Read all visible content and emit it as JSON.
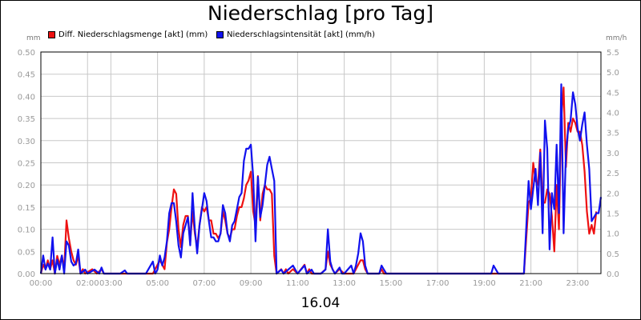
{
  "chart_data": {
    "type": "line",
    "title": "Niederschlag [pro Tag]",
    "xlabel": "16.04",
    "left_axis_unit": "mm",
    "right_axis_unit": "mm/h",
    "y_left_range": [
      0,
      0.5
    ],
    "y_right_range": [
      0,
      5.5
    ],
    "y_left_ticks": [
      "0.00",
      "0.05",
      "0.10",
      "0.15",
      "0.20",
      "0.25",
      "0.30",
      "0.35",
      "0.40",
      "0.45",
      "0.50"
    ],
    "y_right_ticks": [
      "0.0",
      "0.5",
      "1.0",
      "1.5",
      "2.0",
      "2.5",
      "3.0",
      "3.5",
      "4.0",
      "4.5",
      "5.0",
      "5.5"
    ],
    "x_range_hours": [
      0,
      24
    ],
    "x_ticks": [
      {
        "hour": 0,
        "label": "00:00"
      },
      {
        "hour": 2,
        "label": "02:00"
      },
      {
        "hour": 3,
        "label": "03:00"
      },
      {
        "hour": 5,
        "label": "05:00"
      },
      {
        "hour": 7,
        "label": "07:00"
      },
      {
        "hour": 9,
        "label": "09:00"
      },
      {
        "hour": 11,
        "label": "11:00"
      },
      {
        "hour": 13,
        "label": "13:00"
      },
      {
        "hour": 15,
        "label": "15:00"
      },
      {
        "hour": 17,
        "label": "17:00"
      },
      {
        "hour": 19,
        "label": "19:00"
      },
      {
        "hour": 21,
        "label": "21:00"
      },
      {
        "hour": 23,
        "label": "23:00"
      }
    ],
    "grid": true,
    "legend_position": "top-left",
    "series": [
      {
        "name": "Diff. Niederschlagsmenge [akt] (mm)",
        "axis": "left",
        "color": "#ee1111",
        "points": [
          [
            0.0,
            0.0
          ],
          [
            0.1,
            0.02
          ],
          [
            0.2,
            0.01
          ],
          [
            0.3,
            0.03
          ],
          [
            0.4,
            0.01
          ],
          [
            0.5,
            0.03
          ],
          [
            0.6,
            0.0
          ],
          [
            0.7,
            0.04
          ],
          [
            0.8,
            0.02
          ],
          [
            0.9,
            0.04
          ],
          [
            1.0,
            0.01
          ],
          [
            1.1,
            0.12
          ],
          [
            1.2,
            0.08
          ],
          [
            1.3,
            0.05
          ],
          [
            1.4,
            0.03
          ],
          [
            1.5,
            0.02
          ],
          [
            1.6,
            0.04
          ],
          [
            1.7,
            0.0
          ],
          [
            1.8,
            0.01
          ],
          [
            1.9,
            0.0
          ],
          [
            2.2,
            0.01
          ],
          [
            2.4,
            0.0
          ],
          [
            2.6,
            0.01
          ],
          [
            2.7,
            0.0
          ],
          [
            3.4,
            0.0
          ],
          [
            4.5,
            0.0
          ],
          [
            4.8,
            0.0
          ],
          [
            4.9,
            0.01
          ],
          [
            5.0,
            0.02
          ],
          [
            5.1,
            0.03
          ],
          [
            5.3,
            0.01
          ],
          [
            5.4,
            0.07
          ],
          [
            5.5,
            0.1
          ],
          [
            5.6,
            0.15
          ],
          [
            5.7,
            0.19
          ],
          [
            5.8,
            0.18
          ],
          [
            5.9,
            0.1
          ],
          [
            6.0,
            0.06
          ],
          [
            6.1,
            0.11
          ],
          [
            6.2,
            0.13
          ],
          [
            6.3,
            0.13
          ],
          [
            6.4,
            0.07
          ],
          [
            6.5,
            0.14
          ],
          [
            6.6,
            0.09
          ],
          [
            6.7,
            0.06
          ],
          [
            6.8,
            0.11
          ],
          [
            6.9,
            0.15
          ],
          [
            7.0,
            0.14
          ],
          [
            7.1,
            0.15
          ],
          [
            7.2,
            0.12
          ],
          [
            7.3,
            0.12
          ],
          [
            7.4,
            0.09
          ],
          [
            7.5,
            0.09
          ],
          [
            7.6,
            0.08
          ],
          [
            7.7,
            0.09
          ],
          [
            7.8,
            0.14
          ],
          [
            7.9,
            0.12
          ],
          [
            8.0,
            0.09
          ],
          [
            8.1,
            0.08
          ],
          [
            8.2,
            0.1
          ],
          [
            8.3,
            0.1
          ],
          [
            8.4,
            0.13
          ],
          [
            8.5,
            0.15
          ],
          [
            8.6,
            0.15
          ],
          [
            8.7,
            0.17
          ],
          [
            8.8,
            0.2
          ],
          [
            8.9,
            0.21
          ],
          [
            9.0,
            0.23
          ],
          [
            9.1,
            0.14
          ],
          [
            9.2,
            0.11
          ],
          [
            9.3,
            0.22
          ],
          [
            9.4,
            0.12
          ],
          [
            9.5,
            0.18
          ],
          [
            9.6,
            0.2
          ],
          [
            9.7,
            0.19
          ],
          [
            9.8,
            0.19
          ],
          [
            9.9,
            0.18
          ],
          [
            10.0,
            0.04
          ],
          [
            10.1,
            0.0
          ],
          [
            10.3,
            0.01
          ],
          [
            10.4,
            0.0
          ],
          [
            10.5,
            0.01
          ],
          [
            10.6,
            0.0
          ],
          [
            10.8,
            0.01
          ],
          [
            11.0,
            0.0
          ],
          [
            11.3,
            0.02
          ],
          [
            11.4,
            0.0
          ],
          [
            11.5,
            0.01
          ],
          [
            11.6,
            0.0
          ],
          [
            12.0,
            0.0
          ],
          [
            12.2,
            0.01
          ],
          [
            12.3,
            0.05
          ],
          [
            12.4,
            0.02
          ],
          [
            12.5,
            0.01
          ],
          [
            12.6,
            0.0
          ],
          [
            12.8,
            0.01
          ],
          [
            13.0,
            0.0
          ],
          [
            13.4,
            0.0
          ],
          [
            13.5,
            0.01
          ],
          [
            13.6,
            0.02
          ],
          [
            13.7,
            0.03
          ],
          [
            13.8,
            0.03
          ],
          [
            13.9,
            0.01
          ],
          [
            14.0,
            0.0
          ],
          [
            14.5,
            0.0
          ],
          [
            14.6,
            0.01
          ],
          [
            14.7,
            0.0
          ],
          [
            17.0,
            0.0
          ],
          [
            19.4,
            0.0
          ],
          [
            19.8,
            0.0
          ],
          [
            20.5,
            0.0
          ],
          [
            20.7,
            0.0
          ],
          [
            20.9,
            0.16
          ],
          [
            21.0,
            0.17
          ],
          [
            21.1,
            0.25
          ],
          [
            21.2,
            0.21
          ],
          [
            21.3,
            0.2
          ],
          [
            21.4,
            0.28
          ],
          [
            21.5,
            0.16
          ],
          [
            21.6,
            0.16
          ],
          [
            21.7,
            0.19
          ],
          [
            21.8,
            0.18
          ],
          [
            21.9,
            0.13
          ],
          [
            22.0,
            0.05
          ],
          [
            22.1,
            0.2
          ],
          [
            22.2,
            0.1
          ],
          [
            22.3,
            0.35
          ],
          [
            22.4,
            0.42
          ],
          [
            22.5,
            0.24
          ],
          [
            22.6,
            0.34
          ],
          [
            22.7,
            0.32
          ],
          [
            22.8,
            0.35
          ],
          [
            22.9,
            0.34
          ],
          [
            23.0,
            0.32
          ],
          [
            23.1,
            0.32
          ],
          [
            23.2,
            0.29
          ],
          [
            23.3,
            0.23
          ],
          [
            23.4,
            0.14
          ],
          [
            23.5,
            0.09
          ],
          [
            23.6,
            0.11
          ],
          [
            23.7,
            0.09
          ],
          [
            23.8,
            0.14
          ]
        ]
      },
      {
        "name": "Niederschlagsintensität [akt] (mm/h)",
        "axis": "right",
        "color": "#1111ee",
        "points": [
          [
            0.0,
            0.0
          ],
          [
            0.1,
            0.45
          ],
          [
            0.2,
            0.1
          ],
          [
            0.3,
            0.25
          ],
          [
            0.4,
            0.1
          ],
          [
            0.5,
            0.9
          ],
          [
            0.6,
            0.0
          ],
          [
            0.7,
            0.35
          ],
          [
            0.8,
            0.1
          ],
          [
            0.9,
            0.45
          ],
          [
            1.0,
            0.0
          ],
          [
            1.1,
            0.8
          ],
          [
            1.2,
            0.7
          ],
          [
            1.3,
            0.3
          ],
          [
            1.4,
            0.2
          ],
          [
            1.5,
            0.25
          ],
          [
            1.6,
            0.6
          ],
          [
            1.7,
            0.0
          ],
          [
            1.9,
            0.1
          ],
          [
            2.0,
            0.0
          ],
          [
            2.3,
            0.1
          ],
          [
            2.5,
            0.0
          ],
          [
            2.6,
            0.15
          ],
          [
            2.7,
            0.0
          ],
          [
            3.4,
            0.0
          ],
          [
            3.6,
            0.08
          ],
          [
            3.7,
            0.0
          ],
          [
            4.5,
            0.0
          ],
          [
            4.7,
            0.2
          ],
          [
            4.8,
            0.3
          ],
          [
            4.9,
            0.0
          ],
          [
            5.0,
            0.1
          ],
          [
            5.1,
            0.45
          ],
          [
            5.2,
            0.2
          ],
          [
            5.3,
            0.4
          ],
          [
            5.4,
            0.8
          ],
          [
            5.5,
            1.5
          ],
          [
            5.6,
            1.75
          ],
          [
            5.7,
            1.75
          ],
          [
            5.8,
            1.3
          ],
          [
            5.9,
            0.7
          ],
          [
            6.0,
            0.4
          ],
          [
            6.1,
            1.0
          ],
          [
            6.2,
            1.2
          ],
          [
            6.3,
            1.4
          ],
          [
            6.4,
            0.7
          ],
          [
            6.5,
            2.0
          ],
          [
            6.6,
            1.1
          ],
          [
            6.7,
            0.5
          ],
          [
            6.8,
            1.2
          ],
          [
            6.9,
            1.6
          ],
          [
            7.0,
            2.0
          ],
          [
            7.1,
            1.8
          ],
          [
            7.2,
            1.3
          ],
          [
            7.3,
            0.9
          ],
          [
            7.4,
            0.9
          ],
          [
            7.5,
            0.8
          ],
          [
            7.6,
            0.8
          ],
          [
            7.7,
            1.0
          ],
          [
            7.8,
            1.7
          ],
          [
            7.9,
            1.5
          ],
          [
            8.0,
            1.0
          ],
          [
            8.1,
            0.8
          ],
          [
            8.2,
            1.2
          ],
          [
            8.3,
            1.3
          ],
          [
            8.4,
            1.6
          ],
          [
            8.5,
            1.9
          ],
          [
            8.6,
            2.0
          ],
          [
            8.7,
            2.8
          ],
          [
            8.8,
            3.1
          ],
          [
            8.9,
            3.1
          ],
          [
            9.0,
            3.2
          ],
          [
            9.1,
            2.4
          ],
          [
            9.2,
            0.8
          ],
          [
            9.3,
            2.4
          ],
          [
            9.4,
            1.4
          ],
          [
            9.5,
            1.7
          ],
          [
            9.6,
            2.2
          ],
          [
            9.7,
            2.7
          ],
          [
            9.8,
            2.9
          ],
          [
            9.9,
            2.6
          ],
          [
            10.0,
            2.3
          ],
          [
            10.1,
            0.0
          ],
          [
            10.3,
            0.1
          ],
          [
            10.4,
            0.0
          ],
          [
            10.8,
            0.2
          ],
          [
            11.0,
            0.0
          ],
          [
            11.3,
            0.2
          ],
          [
            11.4,
            0.0
          ],
          [
            11.6,
            0.1
          ],
          [
            11.7,
            0.0
          ],
          [
            12.0,
            0.0
          ],
          [
            12.2,
            0.1
          ],
          [
            12.3,
            1.1
          ],
          [
            12.4,
            0.3
          ],
          [
            12.5,
            0.1
          ],
          [
            12.6,
            0.0
          ],
          [
            12.8,
            0.15
          ],
          [
            12.9,
            0.0
          ],
          [
            13.0,
            0.0
          ],
          [
            13.3,
            0.2
          ],
          [
            13.4,
            0.0
          ],
          [
            13.5,
            0.2
          ],
          [
            13.6,
            0.5
          ],
          [
            13.7,
            1.0
          ],
          [
            13.8,
            0.8
          ],
          [
            13.9,
            0.2
          ],
          [
            14.0,
            0.0
          ],
          [
            14.5,
            0.0
          ],
          [
            14.6,
            0.2
          ],
          [
            14.7,
            0.1
          ],
          [
            14.8,
            0.0
          ],
          [
            17.0,
            0.0
          ],
          [
            19.3,
            0.0
          ],
          [
            19.4,
            0.2
          ],
          [
            19.5,
            0.1
          ],
          [
            19.6,
            0.0
          ],
          [
            20.0,
            0.0
          ],
          [
            20.2,
            0.0
          ],
          [
            20.4,
            0.0
          ],
          [
            20.6,
            0.0
          ],
          [
            20.7,
            0.0
          ],
          [
            20.9,
            2.3
          ],
          [
            21.0,
            1.6
          ],
          [
            21.1,
            2.1
          ],
          [
            21.2,
            2.6
          ],
          [
            21.3,
            1.7
          ],
          [
            21.4,
            3.0
          ],
          [
            21.5,
            1.0
          ],
          [
            21.6,
            3.8
          ],
          [
            21.7,
            3.1
          ],
          [
            21.8,
            0.6
          ],
          [
            21.9,
            2.0
          ],
          [
            22.0,
            1.6
          ],
          [
            22.1,
            3.2
          ],
          [
            22.2,
            1.5
          ],
          [
            22.3,
            4.7
          ],
          [
            22.4,
            1.0
          ],
          [
            22.5,
            3.0
          ],
          [
            22.6,
            3.6
          ],
          [
            22.7,
            3.8
          ],
          [
            22.8,
            4.5
          ],
          [
            22.9,
            4.2
          ],
          [
            23.0,
            3.6
          ],
          [
            23.1,
            3.3
          ],
          [
            23.2,
            3.7
          ],
          [
            23.3,
            4.0
          ],
          [
            23.4,
            3.2
          ],
          [
            23.5,
            2.6
          ],
          [
            23.6,
            1.3
          ],
          [
            23.7,
            1.4
          ],
          [
            23.8,
            1.5
          ],
          [
            23.9,
            1.5
          ],
          [
            24.0,
            1.9
          ]
        ]
      }
    ]
  }
}
